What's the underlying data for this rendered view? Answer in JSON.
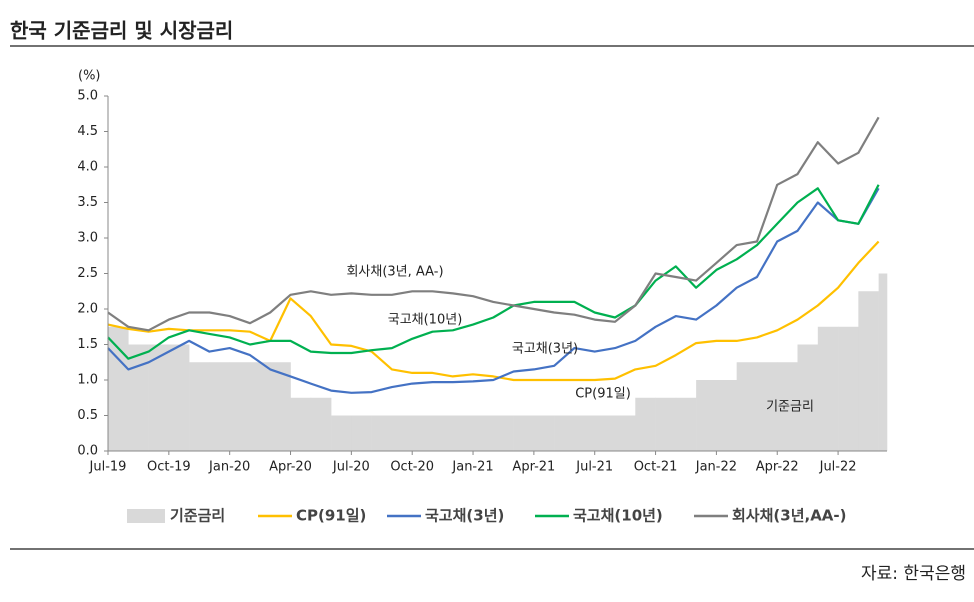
{
  "chart_data": {
    "type": "line",
    "title": "한국 기준금리 및 시장금리",
    "y_unit": "(%)",
    "source": "자료: 한국은행",
    "categories": [
      "Jul-19",
      null,
      null,
      "Oct-19",
      null,
      null,
      "Jan-20",
      null,
      null,
      "Apr-20",
      null,
      null,
      "Jul-20",
      null,
      null,
      "Oct-20",
      null,
      null,
      "Jan-21",
      null,
      null,
      "Apr-21",
      null,
      null,
      "Jul-21",
      null,
      null,
      "Oct-21",
      null,
      null,
      "Jan-22",
      null,
      null,
      "Apr-22",
      null,
      null,
      "Jul-22",
      null,
      null
    ],
    "ylim": [
      0,
      5
    ],
    "yticks": [
      {
        "value": 0,
        "label": "0.0"
      },
      0.5,
      {
        "value": 1,
        "label": "1.0"
      },
      1.5,
      {
        "value": 2,
        "label": "2.0"
      },
      2.5,
      {
        "value": 3,
        "label": "3.0"
      },
      3.5,
      {
        "value": 4,
        "label": "4.0"
      },
      4.5,
      {
        "value": 5,
        "label": "5.0"
      }
    ],
    "series": [
      {
        "name": "기준금리",
        "color": "#d9d9d9",
        "style": "step-area",
        "values": [
          1.75,
          1.5,
          1.5,
          1.5,
          1.25,
          1.25,
          1.25,
          1.25,
          1.25,
          0.75,
          0.75,
          0.5,
          0.5,
          0.5,
          0.5,
          0.5,
          0.5,
          0.5,
          0.5,
          0.5,
          0.5,
          0.5,
          0.5,
          0.5,
          0.5,
          0.5,
          0.75,
          0.75,
          0.75,
          1.0,
          1.0,
          1.25,
          1.25,
          1.25,
          1.5,
          1.75,
          1.75,
          2.25,
          2.5
        ]
      },
      {
        "name": "CP(91일)",
        "color": "#ffc000",
        "style": "line",
        "values": [
          1.78,
          1.72,
          1.68,
          1.72,
          1.7,
          1.7,
          1.7,
          1.68,
          1.55,
          2.15,
          1.9,
          1.5,
          1.48,
          1.4,
          1.15,
          1.1,
          1.1,
          1.05,
          1.08,
          1.05,
          1.0,
          1.0,
          1.0,
          1.0,
          1.0,
          1.02,
          1.15,
          1.2,
          1.35,
          1.52,
          1.55,
          1.55,
          1.6,
          1.7,
          1.85,
          2.05,
          2.3,
          2.65,
          2.95
        ]
      },
      {
        "name": "국고채(3년)",
        "color": "#4472c4",
        "style": "line",
        "values": [
          1.45,
          1.15,
          1.25,
          1.4,
          1.55,
          1.4,
          1.45,
          1.35,
          1.15,
          1.05,
          0.95,
          0.85,
          0.82,
          0.83,
          0.9,
          0.95,
          0.97,
          0.97,
          0.98,
          1.0,
          1.12,
          1.15,
          1.2,
          1.45,
          1.4,
          1.45,
          1.55,
          1.75,
          1.9,
          1.85,
          2.05,
          2.3,
          2.45,
          2.95,
          3.1,
          3.5,
          3.25,
          3.2,
          3.7
        ]
      },
      {
        "name": "국고채(10년)",
        "color": "#00b050",
        "style": "line",
        "values": [
          1.6,
          1.3,
          1.4,
          1.6,
          1.7,
          1.65,
          1.6,
          1.5,
          1.55,
          1.55,
          1.4,
          1.38,
          1.38,
          1.42,
          1.45,
          1.58,
          1.68,
          1.7,
          1.78,
          1.88,
          2.05,
          2.1,
          2.1,
          2.1,
          1.95,
          1.88,
          2.05,
          2.4,
          2.6,
          2.3,
          2.55,
          2.7,
          2.9,
          3.2,
          3.5,
          3.7,
          3.25,
          3.2,
          3.75
        ]
      },
      {
        "name": "회사채(3년,AA-)",
        "color": "#7f7f7f",
        "style": "line",
        "values": [
          1.95,
          1.75,
          1.7,
          1.85,
          1.95,
          1.95,
          1.9,
          1.8,
          1.95,
          2.2,
          2.25,
          2.2,
          2.22,
          2.2,
          2.2,
          2.25,
          2.25,
          2.22,
          2.18,
          2.1,
          2.05,
          2.0,
          1.95,
          1.92,
          1.85,
          1.82,
          2.05,
          2.5,
          2.45,
          2.4,
          2.65,
          2.9,
          2.95,
          3.75,
          3.9,
          4.35,
          4.05,
          4.2,
          4.7
        ]
      }
    ],
    "annotations": [
      "회사채(3년, AA-)",
      "국고채(10년)",
      "국고채(3년)",
      "CP(91일)",
      "기준금리"
    ]
  }
}
